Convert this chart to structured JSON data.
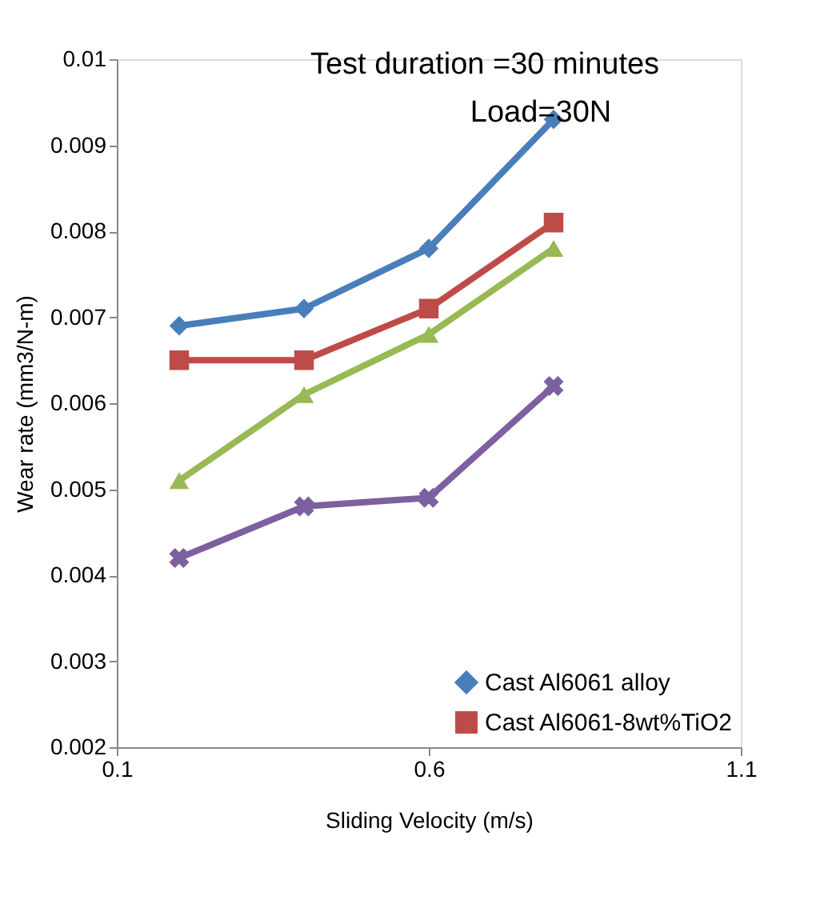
{
  "chart_data": {
    "type": "line",
    "x": [
      0.2,
      0.4,
      0.6,
      0.8
    ],
    "xlabel": "Sliding Velocity (m/s)",
    "ylabel": "Wear rate (mm3/N-m)",
    "xlim": [
      0.1,
      1.1
    ],
    "xticks": [
      0.1,
      0.6,
      1.1
    ],
    "ylim": [
      0.002,
      0.01
    ],
    "yticks": [
      0.002,
      0.003,
      0.004,
      0.005,
      0.006,
      0.007,
      0.008,
      0.009,
      0.01
    ],
    "grid": false,
    "legend": "bottom right",
    "annotations": [
      "Test duration =30 minutes",
      "Load=30N"
    ],
    "series": [
      {
        "name": "Cast Al6061 alloy",
        "color": "#4a7ebb",
        "marker": "diamond",
        "values": [
          0.0069,
          0.0071,
          0.0078,
          0.0093
        ]
      },
      {
        "name": "Cast Al6061-8wt%TiO2",
        "color": "#be4b48",
        "marker": "square",
        "values": [
          0.0065,
          0.0065,
          0.0071,
          0.0081
        ]
      },
      {
        "color": "#98b954",
        "marker": "triangle",
        "values": [
          0.0051,
          0.0061,
          0.0068,
          0.0078
        ]
      },
      {
        "color": "#7d60a0",
        "marker": "cross",
        "values": [
          0.0042,
          0.0048,
          0.0049,
          0.0062
        ]
      }
    ]
  }
}
